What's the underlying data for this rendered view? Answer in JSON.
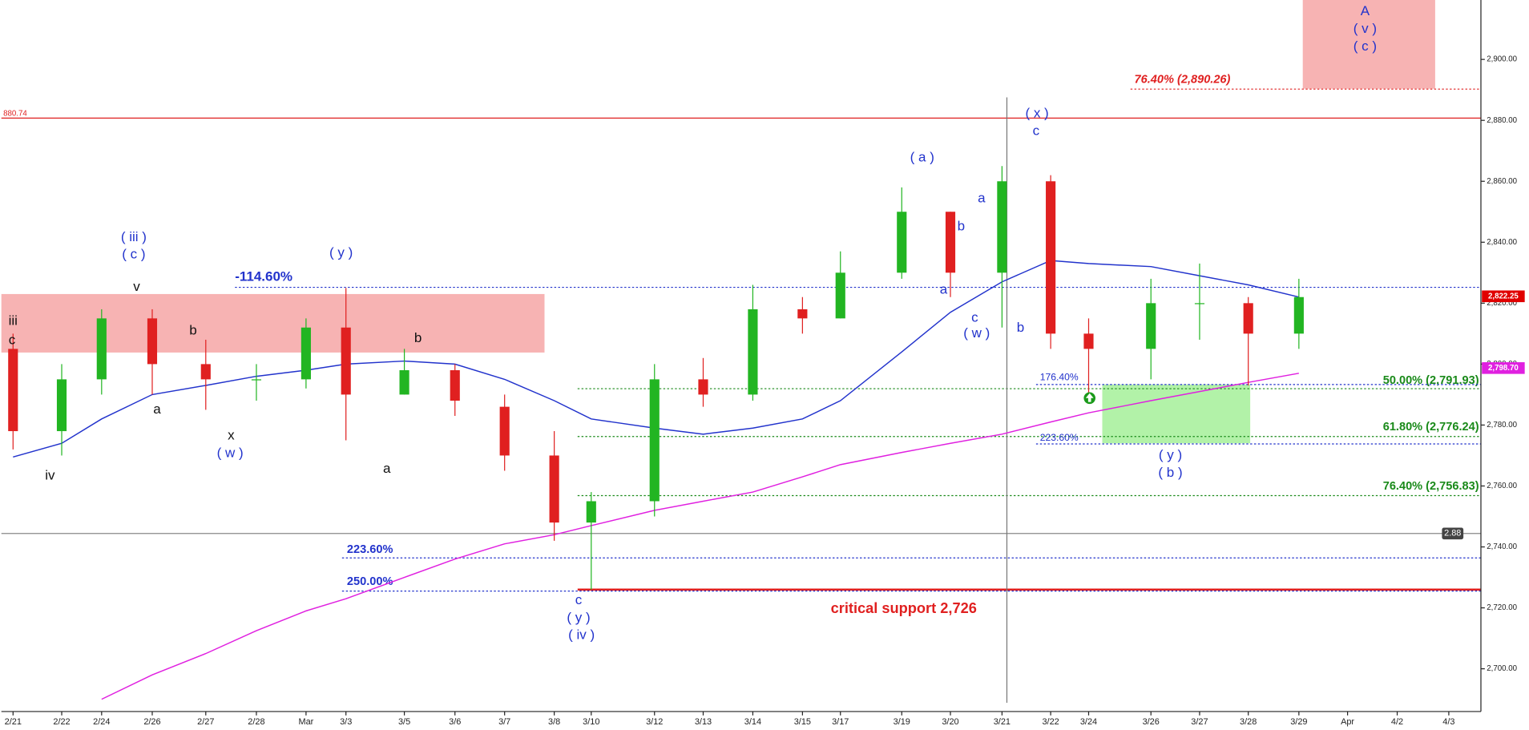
{
  "chart_data": {
    "type": "candlestick",
    "categories": [
      "2/21",
      "2/22",
      "2/24",
      "2/26",
      "2/27",
      "2/28",
      "Mar",
      "3/3",
      "3/5",
      "3/6",
      "3/7",
      "3/8",
      "3/10",
      "3/12",
      "3/13",
      "3/14",
      "3/15",
      "3/17",
      "3/19",
      "3/20",
      "3/21",
      "3/22",
      "3/24",
      "3/26",
      "3/27",
      "3/28",
      "3/29",
      "Apr",
      "4/2",
      "4/3"
    ],
    "open": [
      2805,
      2778,
      2795,
      2815,
      2800,
      2795,
      2795,
      2812,
      2790,
      2798,
      2786,
      2770,
      2748,
      2755,
      2795,
      2790,
      2818,
      2815,
      2830,
      2850,
      2830,
      2860,
      2810,
      2805,
      2820,
      2820,
      2810,
      null,
      null,
      null
    ],
    "high": [
      2810,
      2800,
      2818,
      2818,
      2808,
      2800,
      2815,
      2825,
      2805,
      2800,
      2790,
      2778,
      2758,
      2800,
      2802,
      2826,
      2822,
      2837,
      2858,
      2850,
      2865,
      2862,
      2815,
      2828,
      2833,
      2822,
      2828,
      null,
      null,
      null
    ],
    "low": [
      2772,
      2770,
      2790,
      2790,
      2785,
      2788,
      2792,
      2775,
      2790,
      2783,
      2765,
      2742,
      2726,
      2750,
      2786,
      2788,
      2810,
      2815,
      2828,
      2822,
      2812,
      2805,
      2790,
      2795,
      2808,
      2793,
      2805,
      null,
      null,
      null
    ],
    "close": [
      2778,
      2795,
      2815,
      2800,
      2795,
      2795,
      2812,
      2790,
      2798,
      2788,
      2770,
      2748,
      2755,
      2795,
      2790,
      2818,
      2815,
      2830,
      2850,
      2830,
      2860,
      2810,
      2805,
      2820,
      2820,
      2810,
      2822,
      null,
      null,
      null
    ],
    "up_color": "#22b522",
    "down_color": "#e02020",
    "moving_averages": [
      {
        "color": "#2233cc",
        "values": [
          2769.5,
          2774,
          2782,
          2790,
          2793,
          2796,
          2798,
          2800,
          2801,
          2800,
          2795,
          2788,
          2782,
          2779,
          2777,
          2779,
          2782,
          2788,
          2804,
          2817,
          2827,
          2834,
          2833,
          2832,
          2829,
          2826,
          2822,
          null,
          null,
          null
        ]
      },
      {
        "color": "#e020e0",
        "values": [
          null,
          null,
          2690,
          2698,
          2705,
          2712.5,
          2719,
          2723,
          2730,
          2736,
          2741,
          2744,
          2747,
          2752,
          2755,
          2758,
          2763,
          2767,
          2771,
          2774,
          2777,
          2781,
          2784,
          2788,
          2791,
          2794,
          2797,
          null,
          null,
          null
        ]
      }
    ],
    "ylim": [
      2686.3,
      2919.5
    ],
    "yticks": [
      {
        "value": 2700,
        "label": "2,700.00"
      },
      {
        "value": 2720,
        "label": "2,720.00"
      },
      {
        "value": 2740,
        "label": "2,740.00"
      },
      {
        "value": 2760,
        "label": "2,760.00"
      },
      {
        "value": 2780,
        "label": "2,780.00"
      },
      {
        "value": 2800,
        "label": "2,800.00"
      },
      {
        "value": 2820,
        "label": "2,820.00"
      },
      {
        "value": 2840,
        "label": "2,840.00"
      },
      {
        "value": 2860,
        "label": "2,860.00"
      },
      {
        "value": 2880,
        "label": "2,880.00"
      },
      {
        "value": 2900,
        "label": "2,900.00"
      }
    ],
    "zones": [
      {
        "range": [
          2803.8,
          2823
        ],
        "color": "#f7b3b3"
      },
      {
        "range": [
          2890.4,
          2919.5
        ],
        "color": "#f7b3b3"
      },
      {
        "range": [
          2774,
          2793.3
        ],
        "color": "#b2f2a8"
      }
    ],
    "levels": [
      {
        "value": 2880.74,
        "label": "880.74",
        "color": "#e02020",
        "style": "solid"
      },
      {
        "value": 2890.26,
        "label": "76.40% (2,890.26)",
        "color": "#e02020",
        "style": "dotted"
      },
      {
        "value": 2825.2,
        "label": "-114.60%",
        "color": "#2233cc",
        "style": "dotted"
      },
      {
        "value": 2736.4,
        "label": "223.60%",
        "color": "#2233cc",
        "style": "dotted"
      },
      {
        "value": 2725.5,
        "label": "250.00%",
        "color": "#2233cc",
        "style": "dotted"
      },
      {
        "value": 2726,
        "label": "critical support 2,726",
        "color": "#e02020",
        "style": "solid"
      },
      {
        "value": 2791.93,
        "label": "50.00% (2,791.93)",
        "color": "#1a8a1a",
        "style": "dotted"
      },
      {
        "value": 2776.24,
        "label": "61.80% (2,776.24)",
        "color": "#1a8a1a",
        "style": "dotted"
      },
      {
        "value": 2756.83,
        "label": "76.40% (2,756.83)",
        "color": "#1a8a1a",
        "style": "dotted"
      },
      {
        "value": 2793.3,
        "label": "176.40%",
        "color": "#2233cc",
        "style": "dotted"
      },
      {
        "value": 2773.8,
        "label": "223.60%",
        "color": "#2233cc",
        "style": "dotted"
      },
      {
        "value": 2744.4,
        "label": "2.88",
        "color": "#888888",
        "style": "solid"
      }
    ],
    "price_tags": [
      {
        "value": 2822.25,
        "label": "2,822.25",
        "color": "#e00000"
      },
      {
        "value": 2798.7,
        "label": "2,798.70",
        "color": "#e020e0"
      }
    ],
    "annotations": [
      {
        "text": "iii",
        "color": "#111111"
      },
      {
        "text": "c",
        "color": "#111111"
      },
      {
        "text": "( iii )",
        "color": "#2233cc"
      },
      {
        "text": "( c )",
        "color": "#2233cc"
      },
      {
        "text": "v",
        "color": "#111111"
      },
      {
        "text": "b",
        "color": "#111111"
      },
      {
        "text": "a",
        "color": "#111111"
      },
      {
        "text": "x",
        "color": "#111111"
      },
      {
        "text": "( w )",
        "color": "#2233cc"
      },
      {
        "text": "iv",
        "color": "#111111"
      },
      {
        "text": "( y )",
        "color": "#2233cc"
      },
      {
        "text": "a",
        "color": "#111111"
      },
      {
        "text": "b",
        "color": "#111111"
      },
      {
        "text": "c",
        "color": "#2233cc"
      },
      {
        "text": "( y )",
        "color": "#2233cc"
      },
      {
        "text": "( iv )",
        "color": "#2233cc"
      },
      {
        "text": "( a )",
        "color": "#2233cc"
      },
      {
        "text": "a",
        "color": "#2233cc"
      },
      {
        "text": "b",
        "color": "#2233cc"
      },
      {
        "text": "a",
        "color": "#2233cc"
      },
      {
        "text": "c",
        "color": "#2233cc"
      },
      {
        "text": "( w )",
        "color": "#2233cc"
      },
      {
        "text": "b",
        "color": "#2233cc"
      },
      {
        "text": "( x )",
        "color": "#2233cc"
      },
      {
        "text": "c",
        "color": "#2233cc"
      },
      {
        "text": "( y )",
        "color": "#2233cc"
      },
      {
        "text": "( b )",
        "color": "#2233cc"
      },
      {
        "text": "A",
        "color": "#2233cc"
      },
      {
        "text": "( v )",
        "color": "#2233cc"
      },
      {
        "text": "( c )",
        "color": "#2233cc"
      }
    ]
  }
}
